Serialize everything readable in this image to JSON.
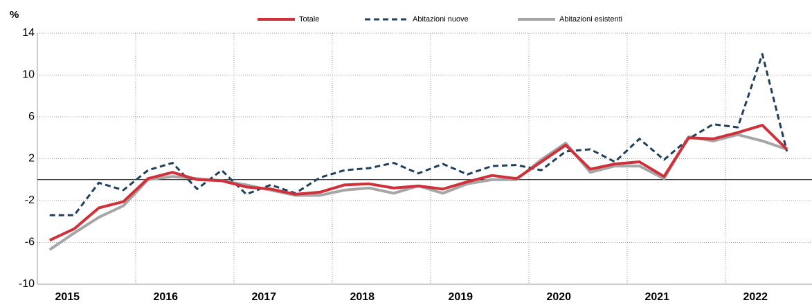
{
  "chart_data": {
    "type": "line",
    "y_unit": "%",
    "categories": [
      null,
      "2015",
      null,
      null,
      null,
      "2016",
      null,
      null,
      null,
      "2017",
      null,
      null,
      null,
      "2018",
      null,
      null,
      null,
      "2019",
      null,
      null,
      null,
      "2020",
      null,
      null,
      null,
      "2021",
      null,
      null,
      null,
      "2022",
      null
    ],
    "series": [
      {
        "name": "Totale",
        "color": "#d0303a",
        "dash": false,
        "values": [
          -5.8,
          -4.7,
          -2.7,
          -2.1,
          0.1,
          0.7,
          0.0,
          -0.1,
          -0.7,
          -0.9,
          -1.4,
          -1.2,
          -0.5,
          -0.4,
          -0.8,
          -0.6,
          -0.9,
          -0.2,
          0.4,
          0.1,
          1.7,
          3.3,
          1.0,
          1.5,
          1.7,
          0.3,
          4.0,
          3.9,
          4.5,
          5.2,
          2.9
        ]
      },
      {
        "name": "Abitazioni nuove",
        "color": "#1f3f5a",
        "dash": true,
        "values": [
          -3.4,
          -3.4,
          -0.3,
          -1.0,
          0.9,
          1.6,
          -0.9,
          0.9,
          -1.4,
          -0.5,
          -1.3,
          0.2,
          0.9,
          1.1,
          1.6,
          0.6,
          1.5,
          0.5,
          1.3,
          1.4,
          0.9,
          2.7,
          2.9,
          1.7,
          3.9,
          1.9,
          3.9,
          5.3,
          5.0,
          12.0,
          2.7
        ]
      },
      {
        "name": "Abitazioni esistenti",
        "color": "#a6a6a6",
        "dash": false,
        "values": [
          -6.7,
          -5.1,
          -3.6,
          -2.5,
          0.0,
          0.3,
          0.1,
          -0.1,
          -0.5,
          -1.0,
          -1.5,
          -1.5,
          -1.0,
          -0.8,
          -1.3,
          -0.6,
          -1.3,
          -0.4,
          0.0,
          0.0,
          1.9,
          3.5,
          0.7,
          1.3,
          1.3,
          0.1,
          4.1,
          3.7,
          4.3,
          3.7,
          2.9
        ]
      }
    ],
    "ylim": [
      -10,
      14
    ],
    "yticks": [
      -10,
      -6,
      -2,
      2,
      6,
      10,
      14
    ],
    "grid": true
  }
}
